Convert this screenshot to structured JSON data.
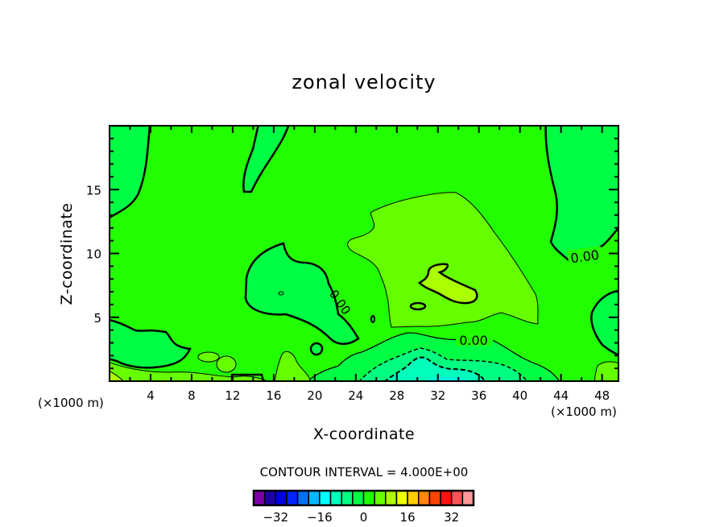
{
  "chart_data": {
    "type": "contour",
    "title": "zonal velocity",
    "xlabel": "X-coordinate",
    "ylabel": "Z-coordinate",
    "x_unit": "(×1000 m)",
    "y_unit": "(×1000 m)",
    "xlim": [
      0,
      49.6
    ],
    "ylim": [
      0,
      20
    ],
    "x_ticks": [
      4,
      8,
      12,
      16,
      20,
      24,
      28,
      32,
      36,
      40,
      44,
      48
    ],
    "y_ticks": [
      5,
      10,
      15
    ],
    "contour_labels": [
      "0.00",
      "0.00",
      "0.00"
    ],
    "contour_interval_text": "CONTOUR INTERVAL = 4.000E+00",
    "colorbar": {
      "levels": [
        -40,
        -36,
        -32,
        -28,
        -24,
        -20,
        -16,
        -12,
        -8,
        -4,
        0,
        4,
        8,
        12,
        16,
        20,
        24,
        28,
        32,
        36,
        40
      ],
      "tick_labels": [
        "−32",
        "−16",
        "0",
        "16",
        "32"
      ],
      "tick_values": [
        -32,
        -16,
        0,
        16,
        32
      ],
      "colors": [
        "#7f00a8",
        "#1e00a8",
        "#0000e0",
        "#0022ff",
        "#0070ff",
        "#00b8ff",
        "#00ffff",
        "#00ffbb",
        "#00ff80",
        "#00ff44",
        "#22ff00",
        "#66ff00",
        "#aaff00",
        "#eeff00",
        "#ffcc00",
        "#ff8800",
        "#ff4400",
        "#ff1111",
        "#ff5555",
        "#ff9999"
      ]
    },
    "legend": "bottom",
    "grid": false
  }
}
